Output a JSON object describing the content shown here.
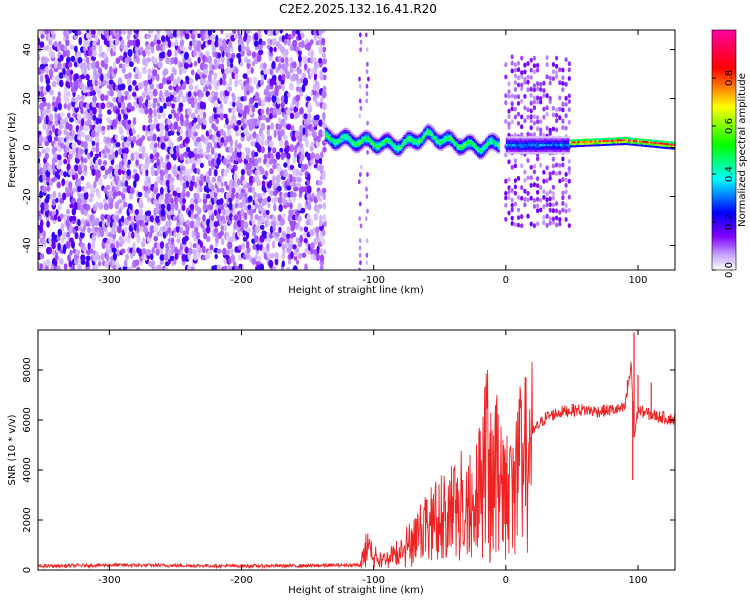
{
  "page_title": "C2E2.2025.132.16.41.R20",
  "chart_data": [
    {
      "type": "heatmap",
      "title": "C2E2.2025.132.16.41.R20",
      "xlabel": "Height of straight line (km)",
      "ylabel": "Frequency (Hz)",
      "xlim": [
        -354,
        128
      ],
      "ylim": [
        -50,
        48
      ],
      "x_ticks": [
        -300,
        -200,
        -100,
        0,
        100
      ],
      "y_ticks": [
        -40,
        -20,
        0,
        20,
        40
      ],
      "colorbar": {
        "label": "Normalized spectral amplitude",
        "range": [
          0,
          1
        ],
        "ticks": [
          0.0,
          0.2,
          0.4,
          0.6,
          0.8
        ],
        "colors": [
          "#ffffff",
          "#8000ff",
          "#0000ff",
          "#00ffff",
          "#00ff00",
          "#ffff00",
          "#ff0000",
          "#ff00a0"
        ]
      },
      "regions": [
        {
          "x_range": [
            -354,
            -137
          ],
          "description_code": "broadband-noise",
          "amplitude": 0.12
        },
        {
          "x_range": [
            -137,
            -5
          ],
          "freq_track": [
            [
              -137,
              4
            ],
            [
              -120,
              3
            ],
            [
              -100,
              2
            ],
            [
              -80,
              1
            ],
            [
              -60,
              5
            ],
            [
              -40,
              2
            ],
            [
              -20,
              0
            ],
            [
              -5,
              2
            ]
          ],
          "amplitude": 0.55
        },
        {
          "x_range": [
            0,
            48
          ],
          "freq_track": [
            [
              0,
              1
            ],
            [
              48,
              1
            ]
          ],
          "amplitude": 0.35,
          "spread": [
            -32,
            38
          ]
        },
        {
          "x_range": [
            48,
            128
          ],
          "freq_track": [
            [
              48,
              2
            ],
            [
              90,
              3
            ],
            [
              128,
              1
            ]
          ],
          "amplitude": 0.95
        }
      ],
      "sparse_columns_km": [
        -111,
        -106
      ]
    },
    {
      "type": "line",
      "xlabel": "Height of straight line (km)",
      "ylabel": "SNR (10 * v/v)",
      "xlim": [
        -354,
        128
      ],
      "ylim": [
        0,
        9600
      ],
      "x_ticks": [
        -300,
        -200,
        -100,
        0,
        100
      ],
      "y_ticks": [
        0,
        2000,
        4000,
        6000,
        8000
      ],
      "series": [
        {
          "color": "#ee2222",
          "x": [
            -354,
            -300,
            -250,
            -200,
            -150,
            -110,
            -105,
            -100,
            -95,
            -90,
            -80,
            -70,
            -60,
            -50,
            -40,
            -30,
            -20,
            -15,
            -10,
            -5,
            0,
            10,
            20,
            30,
            40,
            50,
            60,
            70,
            80,
            90,
            95,
            97,
            100,
            110,
            120,
            128
          ],
          "y": [
            150,
            200,
            180,
            160,
            170,
            200,
            1100,
            700,
            400,
            500,
            900,
            1400,
            2000,
            2500,
            3000,
            3200,
            3800,
            5500,
            4200,
            4800,
            3600,
            4700,
            5500,
            6100,
            6300,
            6400,
            6400,
            6350,
            6400,
            6450,
            8200,
            5300,
            6400,
            6200,
            6100,
            6000
          ],
          "spikes": [
            [
              -15,
              7400
            ],
            [
              -12,
              300
            ],
            [
              -8,
              5000
            ],
            [
              92,
              7600
            ],
            [
              96,
              3600
            ],
            [
              97,
              9500
            ],
            [
              100,
              7800
            ],
            [
              110,
              7500
            ]
          ]
        }
      ]
    }
  ]
}
